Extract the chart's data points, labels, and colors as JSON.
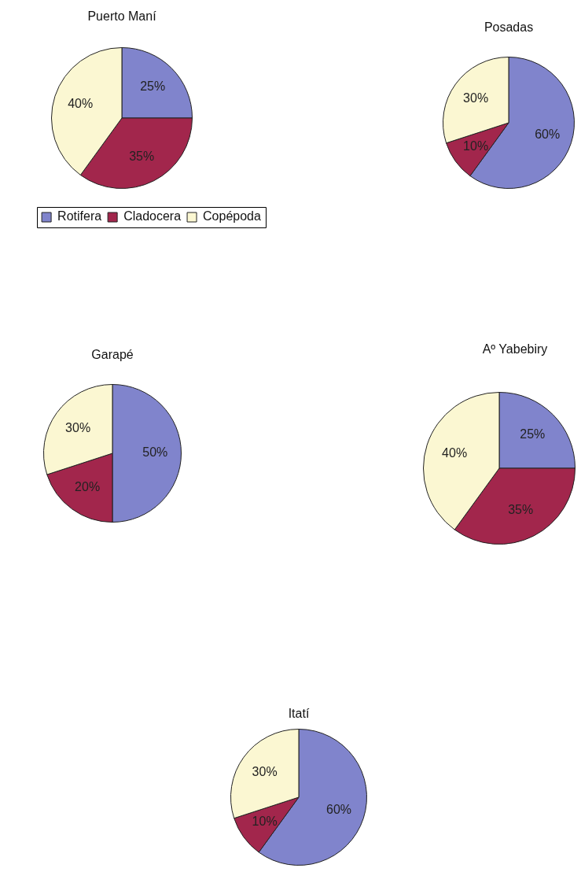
{
  "chart_data": [
    {
      "type": "pie",
      "title": "Puerto Maní",
      "categories": [
        "Rotifera",
        "Cladocera",
        "Copépoda"
      ],
      "values": [
        25,
        35,
        40
      ],
      "colors": [
        "#8084cc",
        "#a2264c",
        "#fbf7d2"
      ],
      "value_labels": [
        "25%",
        "35%",
        "40%"
      ],
      "legend": "bottom"
    },
    {
      "type": "pie",
      "title": "Posadas",
      "categories": [
        null,
        null,
        null
      ],
      "values": [
        60,
        10,
        30
      ],
      "colors": [
        "#8084cc",
        "#a2264c",
        "#fbf7d2"
      ],
      "value_labels": [
        "60%",
        "10%",
        "30%"
      ]
    },
    {
      "type": "pie",
      "title": "Garapé",
      "categories": [
        null,
        null,
        null
      ],
      "values": [
        50,
        20,
        30
      ],
      "colors": [
        "#8084cc",
        "#a2264c",
        "#fbf7d2"
      ],
      "value_labels": [
        "50%",
        "20%",
        "30%"
      ]
    },
    {
      "type": "pie",
      "title": "Aº Yabebiry",
      "categories": [
        null,
        null,
        null
      ],
      "values": [
        25,
        35,
        40
      ],
      "colors": [
        "#8084cc",
        "#a2264c",
        "#fbf7d2"
      ],
      "value_labels": [
        "25%",
        "35%",
        "40%"
      ]
    },
    {
      "type": "pie",
      "title": "Itatí",
      "categories": [
        null,
        null,
        null
      ],
      "values": [
        60,
        10,
        30
      ],
      "colors": [
        "#8084cc",
        "#a2264c",
        "#fbf7d2"
      ],
      "value_labels": [
        "60%",
        "10%",
        "30%"
      ]
    }
  ]
}
